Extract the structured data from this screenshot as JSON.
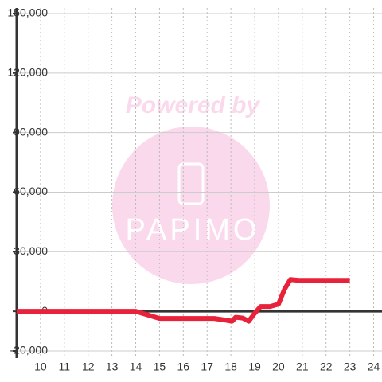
{
  "chart_data": {
    "type": "line",
    "watermark": [
      "Powered by",
      "PAPIMO"
    ],
    "x": [
      9,
      14,
      14.5,
      15,
      17.3,
      17.75,
      18.05,
      18.2,
      18.5,
      18.75,
      19,
      19.25,
      19.65,
      20,
      20.25,
      20.5,
      20.85,
      23
    ],
    "series": [
      {
        "color": "#e8223a",
        "values": [
          0,
          0,
          -1800,
          -3600,
          -3600,
          -4400,
          -5000,
          -3000,
          -3400,
          -5000,
          -1000,
          2400,
          2400,
          3600,
          11000,
          16000,
          15600,
          15600
        ]
      }
    ],
    "xlim": [
      9,
      24.35
    ],
    "xticks": [
      10,
      11,
      12,
      13,
      14,
      15,
      16,
      17,
      18,
      19,
      20,
      21,
      22,
      23,
      24
    ],
    "ylim": [
      -23600,
      152800
    ],
    "yticks": [
      {
        "value": -20000,
        "label": "-20,000"
      },
      0,
      {
        "value": 30000,
        "label": "30,000"
      },
      {
        "value": 60000,
        "label": "60,000"
      },
      {
        "value": 90000,
        "label": "90,000"
      },
      {
        "value": 120000,
        "label": "120,000"
      },
      {
        "value": 150000,
        "label": "150,000"
      }
    ],
    "grid": true
  }
}
